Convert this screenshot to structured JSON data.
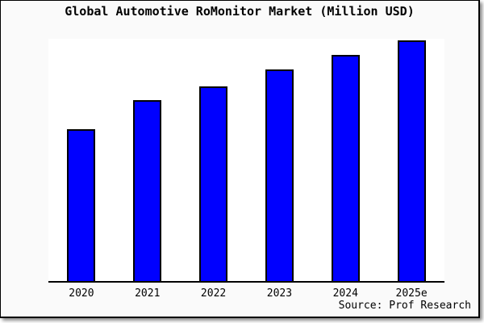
{
  "window": {
    "background_color": "#fafafa",
    "plot_background_color": "#ffffff",
    "frame_border_color": "#000000"
  },
  "chart_data": {
    "type": "bar",
    "title": "Global Automotive RoMonitor Market (Million USD)",
    "categories": [
      "2020",
      "2021",
      "2022",
      "2023",
      "2024",
      "2025e"
    ],
    "values": [
      63,
      75,
      81,
      88,
      94,
      100
    ],
    "value_note": "no y-axis or data labels visible; values are relative estimates from bar heights with 2025e = 100",
    "xlabel": "",
    "ylabel": "",
    "ylim": [
      0,
      100
    ],
    "grid": false,
    "legend": false,
    "bar_color": "#0000ff",
    "bar_border_color": "#000000",
    "source": "Source: Prof Research"
  }
}
